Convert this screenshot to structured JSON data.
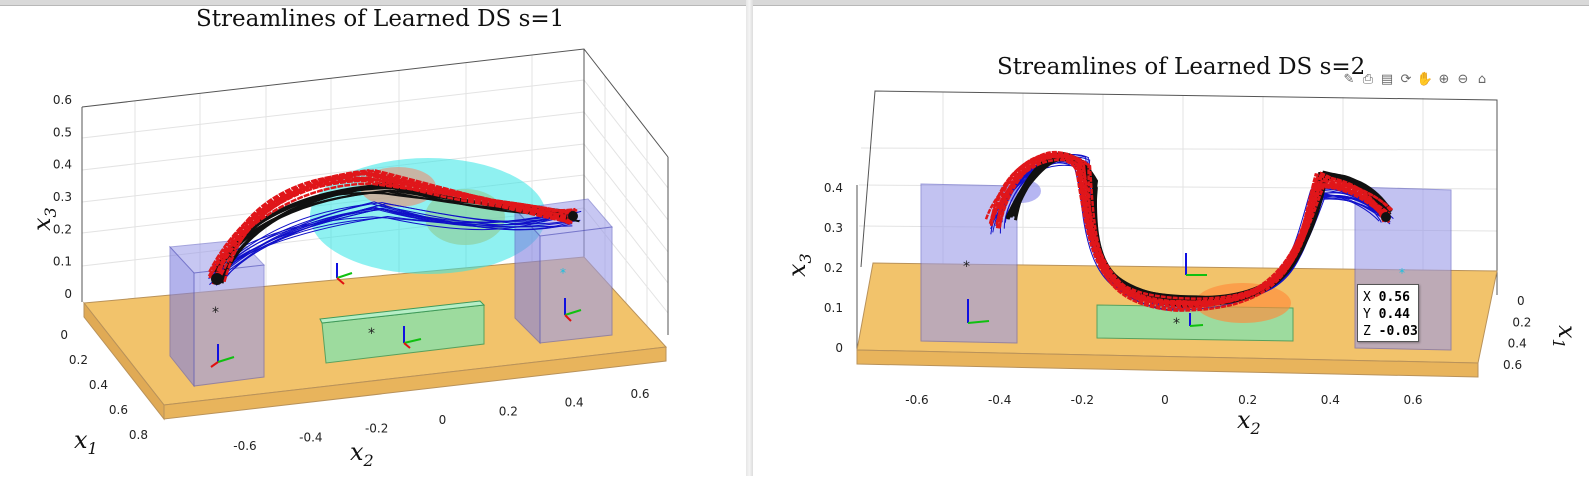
{
  "chart_data": [
    {
      "type": "line",
      "title": "Streamlines of Learned DS s=1",
      "xlabel": "x_1",
      "ylabel": "x_2",
      "zlabel": "x_3",
      "x1_ticks": [
        "0",
        "0.2",
        "0.4",
        "0.6",
        "0.8"
      ],
      "x2_ticks": [
        "-0.6",
        "-0.4",
        "-0.2",
        "0",
        "0.2",
        "0.4",
        "0.6"
      ],
      "x3_ticks": [
        "0",
        "0.1",
        "0.2",
        "0.3",
        "0.4",
        "0.5",
        "0.6"
      ],
      "xlim": [
        0,
        0.8
      ],
      "ylim": [
        -0.7,
        0.7
      ],
      "zlim": [
        0,
        0.6
      ],
      "grid": true,
      "series": [
        {
          "color": "#e0161a",
          "values": [
            [
              0.45,
              -0.55,
              0.06
            ],
            [
              0.3,
              -0.35,
              0.2
            ],
            [
              0.25,
              0.0,
              0.27
            ],
            [
              0.3,
              0.35,
              0.25
            ],
            [
              0.35,
              0.5,
              0.22
            ]
          ]
        },
        {
          "color": "#1010c8",
          "values": [
            [
              0.45,
              -0.5,
              0.1
            ],
            [
              0.3,
              -0.2,
              0.22
            ],
            [
              0.3,
              0.15,
              0.22
            ],
            [
              0.35,
              0.5,
              0.2
            ]
          ]
        },
        {
          "color": "#111111",
          "values": [
            [
              0.45,
              -0.55,
              0.08
            ],
            [
              0.3,
              -0.3,
              0.22
            ],
            [
              0.28,
              0.1,
              0.25
            ],
            [
              0.35,
              0.5,
              0.22
            ]
          ]
        }
      ],
      "gaussians_color": "#33e6e6",
      "table_color": "#f2c36b",
      "box_color": "#8a8ae6",
      "target_box_color": "#8fe0a8"
    },
    {
      "type": "line",
      "title": "Streamlines of Learned DS s=2",
      "xlabel": "x_2",
      "ylabel": "x_1",
      "zlabel": "x_3",
      "x2_ticks": [
        "-0.6",
        "-0.4",
        "-0.2",
        "0",
        "0.2",
        "0.4",
        "0.6"
      ],
      "x1_ticks": [
        "0",
        "0.2",
        "0.4",
        "0.6"
      ],
      "x3_ticks": [
        "0",
        "0.1",
        "0.2",
        "0.3",
        "0.4"
      ],
      "xlim": [
        -0.7,
        0.7
      ],
      "ylim": [
        0,
        0.6
      ],
      "zlim": [
        0,
        0.45
      ],
      "grid": true,
      "series": [
        {
          "color": "#e0161a",
          "values": [
            [
              -0.5,
              0.3,
              0.3
            ],
            [
              -0.35,
              0.3,
              0.45
            ],
            [
              -0.2,
              0.3,
              0.2
            ],
            [
              0.0,
              0.3,
              0.05
            ],
            [
              0.3,
              0.3,
              0.05
            ],
            [
              0.45,
              0.3,
              0.4
            ],
            [
              0.55,
              0.3,
              0.3
            ]
          ]
        },
        {
          "color": "#1010c8",
          "values": [
            [
              -0.55,
              0.3,
              0.32
            ],
            [
              -0.35,
              0.3,
              0.42
            ],
            [
              -0.2,
              0.3,
              0.2
            ],
            [
              0.3,
              0.3,
              0.06
            ],
            [
              0.5,
              0.3,
              0.35
            ]
          ]
        },
        {
          "color": "#111111",
          "values": [
            [
              -0.45,
              0.3,
              0.4
            ],
            [
              -0.3,
              0.3,
              0.47
            ],
            [
              -0.2,
              0.3,
              0.2
            ],
            [
              0.3,
              0.3,
              0.05
            ],
            [
              0.5,
              0.3,
              0.4
            ]
          ]
        }
      ],
      "gaussians_color": "#ff8c3a",
      "table_color": "#f2c36b",
      "box_color": "#8a8ae6",
      "target_box_color": "#8fe0a8",
      "datatip": {
        "x_label": "X",
        "x_value": "0.56",
        "y_label": "Y",
        "y_value": "0.44",
        "z_label": "Z",
        "z_value": "-0.03"
      }
    }
  ],
  "toolbar": {
    "icons": [
      "brush-icon",
      "export-icon",
      "datatip-icon",
      "rotate-icon",
      "pan-icon",
      "zoom-in-icon",
      "zoom-out-icon",
      "home-icon"
    ]
  }
}
